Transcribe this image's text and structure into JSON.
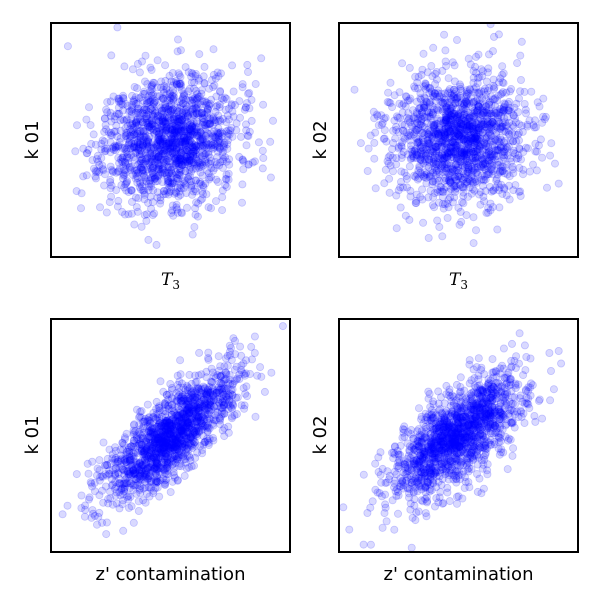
{
  "chart_data": [
    {
      "type": "scatter",
      "xlabel": "T",
      "xlabel_subscript": "3",
      "xlabel_style": "math",
      "ylabel": "k 01",
      "marker_color": "#0000ff",
      "marker_alpha": 0.15,
      "ticks": "none",
      "distribution": {
        "x_mean": 0.0,
        "y_mean": 0.0,
        "x_std": 1.0,
        "y_std": 1.0,
        "correlation": 0.15,
        "n": 1500,
        "seed": 11
      }
    },
    {
      "type": "scatter",
      "xlabel": "T",
      "xlabel_subscript": "3",
      "xlabel_style": "math",
      "ylabel": "k 02",
      "marker_color": "#0000ff",
      "marker_alpha": 0.15,
      "ticks": "none",
      "distribution": {
        "x_mean": 0.0,
        "y_mean": 0.0,
        "x_std": 1.0,
        "y_std": 1.0,
        "correlation": 0.0,
        "n": 1500,
        "seed": 23
      }
    },
    {
      "type": "scatter",
      "xlabel": "z' contamination",
      "xlabel_subscript": "",
      "xlabel_style": "text",
      "ylabel": "k 01",
      "marker_color": "#0000ff",
      "marker_alpha": 0.15,
      "ticks": "none",
      "distribution": {
        "x_mean": 0.0,
        "y_mean": 0.0,
        "x_std": 1.0,
        "y_std": 1.0,
        "correlation": 0.78,
        "n": 1500,
        "seed": 37
      }
    },
    {
      "type": "scatter",
      "xlabel": "z' contamination",
      "xlabel_subscript": "",
      "xlabel_style": "text",
      "ylabel": "k 02",
      "marker_color": "#0000ff",
      "marker_alpha": 0.15,
      "ticks": "none",
      "distribution": {
        "x_mean": 0.0,
        "y_mean": 0.0,
        "x_std": 1.0,
        "y_std": 1.0,
        "correlation": 0.7,
        "n": 1500,
        "seed": 53
      }
    }
  ]
}
